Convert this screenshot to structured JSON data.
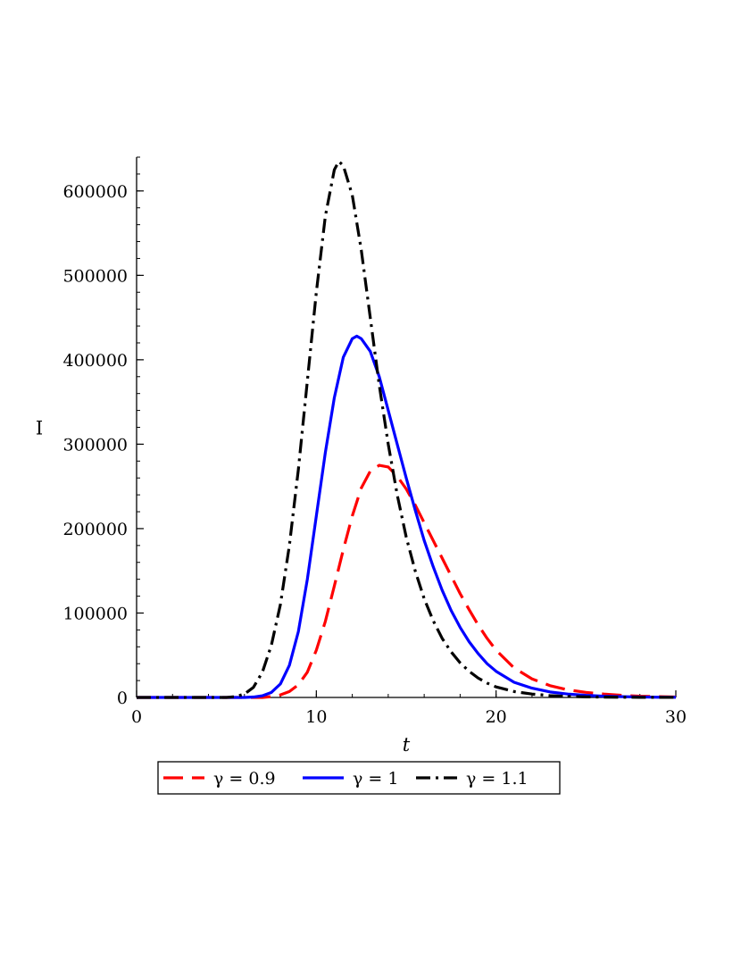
{
  "chart_data": {
    "type": "line",
    "xlabel": "t",
    "ylabel": "I",
    "xlim": [
      0,
      30
    ],
    "ylim": [
      0,
      640000
    ],
    "x_ticks": [
      0,
      10,
      20,
      30
    ],
    "x_tick_labels": [
      "0",
      "10",
      "20",
      "30"
    ],
    "x_minor_step": 2,
    "y_ticks": [
      0,
      100000,
      200000,
      300000,
      400000,
      500000,
      600000
    ],
    "y_tick_labels": [
      "0",
      "100000",
      "200000",
      "300000",
      "400000",
      "500000",
      "600000"
    ],
    "y_minor_step": 20000,
    "grid": false,
    "legend_position": "bottom",
    "series": [
      {
        "name": "γ = 0.9",
        "color": "#ff0000",
        "style": "dashed",
        "points": [
          [
            0,
            0
          ],
          [
            5,
            0
          ],
          [
            6,
            0
          ],
          [
            6.5,
            0
          ],
          [
            7,
            0
          ],
          [
            7.5,
            1000
          ],
          [
            8,
            3000
          ],
          [
            8.5,
            7000
          ],
          [
            9,
            15000
          ],
          [
            9.5,
            30000
          ],
          [
            10,
            56000
          ],
          [
            10.5,
            90000
          ],
          [
            11,
            132000
          ],
          [
            11.5,
            175000
          ],
          [
            12,
            215000
          ],
          [
            12.5,
            248000
          ],
          [
            13,
            268000
          ],
          [
            13.5,
            275000
          ],
          [
            14,
            273000
          ],
          [
            14.5,
            262000
          ],
          [
            15,
            247000
          ],
          [
            15.5,
            228000
          ],
          [
            16,
            207000
          ],
          [
            16.5,
            186000
          ],
          [
            17,
            165000
          ],
          [
            17.5,
            144000
          ],
          [
            18,
            123000
          ],
          [
            18.5,
            104000
          ],
          [
            19,
            86000
          ],
          [
            19.5,
            70000
          ],
          [
            20,
            56000
          ],
          [
            21,
            35000
          ],
          [
            22,
            22000
          ],
          [
            23,
            14000
          ],
          [
            24,
            9000
          ],
          [
            25,
            6000
          ],
          [
            26,
            4000
          ],
          [
            27,
            2500
          ],
          [
            28,
            1500
          ],
          [
            29,
            1000
          ],
          [
            30,
            500
          ]
        ]
      },
      {
        "name": "γ = 1",
        "color": "#0000ff",
        "style": "solid",
        "points": [
          [
            0,
            0
          ],
          [
            5,
            0
          ],
          [
            6,
            0
          ],
          [
            6.5,
            500
          ],
          [
            7,
            2000
          ],
          [
            7.5,
            6000
          ],
          [
            8,
            16000
          ],
          [
            8.5,
            38000
          ],
          [
            9,
            78000
          ],
          [
            9.5,
            140000
          ],
          [
            10,
            215000
          ],
          [
            10.5,
            290000
          ],
          [
            11,
            355000
          ],
          [
            11.5,
            403000
          ],
          [
            12,
            425000
          ],
          [
            12.25,
            428000
          ],
          [
            12.5,
            425000
          ],
          [
            13,
            410000
          ],
          [
            13.5,
            380000
          ],
          [
            14,
            340000
          ],
          [
            14.5,
            300000
          ],
          [
            15,
            260000
          ],
          [
            15.5,
            222000
          ],
          [
            16,
            186000
          ],
          [
            16.5,
            155000
          ],
          [
            17,
            127000
          ],
          [
            17.5,
            103000
          ],
          [
            18,
            83000
          ],
          [
            18.5,
            66000
          ],
          [
            19,
            52000
          ],
          [
            19.5,
            40000
          ],
          [
            20,
            31000
          ],
          [
            21,
            18000
          ],
          [
            22,
            11000
          ],
          [
            23,
            6500
          ],
          [
            24,
            4000
          ],
          [
            25,
            2500
          ],
          [
            26,
            1500
          ],
          [
            27,
            1000
          ],
          [
            28,
            600
          ],
          [
            29,
            300
          ],
          [
            30,
            200
          ]
        ]
      },
      {
        "name": "γ = 1.1",
        "color": "#000000",
        "style": "dashdot",
        "points": [
          [
            0,
            0
          ],
          [
            4,
            0
          ],
          [
            5,
            0
          ],
          [
            5.5,
            1000
          ],
          [
            6,
            4000
          ],
          [
            6.5,
            12000
          ],
          [
            7,
            30000
          ],
          [
            7.5,
            62000
          ],
          [
            8,
            110000
          ],
          [
            8.5,
            180000
          ],
          [
            9,
            270000
          ],
          [
            9.5,
            375000
          ],
          [
            10,
            480000
          ],
          [
            10.5,
            570000
          ],
          [
            11,
            625000
          ],
          [
            11.25,
            635000
          ],
          [
            11.5,
            630000
          ],
          [
            12,
            595000
          ],
          [
            12.5,
            530000
          ],
          [
            13,
            450000
          ],
          [
            13.5,
            370000
          ],
          [
            14,
            300000
          ],
          [
            14.5,
            240000
          ],
          [
            15,
            190000
          ],
          [
            15.5,
            150000
          ],
          [
            16,
            117000
          ],
          [
            16.5,
            91000
          ],
          [
            17,
            70000
          ],
          [
            17.5,
            54000
          ],
          [
            18,
            41000
          ],
          [
            18.5,
            31000
          ],
          [
            19,
            23000
          ],
          [
            19.5,
            17000
          ],
          [
            20,
            12500
          ],
          [
            21,
            7000
          ],
          [
            22,
            4000
          ],
          [
            23,
            2200
          ],
          [
            24,
            1200
          ],
          [
            25,
            700
          ],
          [
            26,
            400
          ],
          [
            27,
            250
          ],
          [
            28,
            150
          ],
          [
            29,
            100
          ],
          [
            30,
            50
          ]
        ]
      }
    ]
  }
}
